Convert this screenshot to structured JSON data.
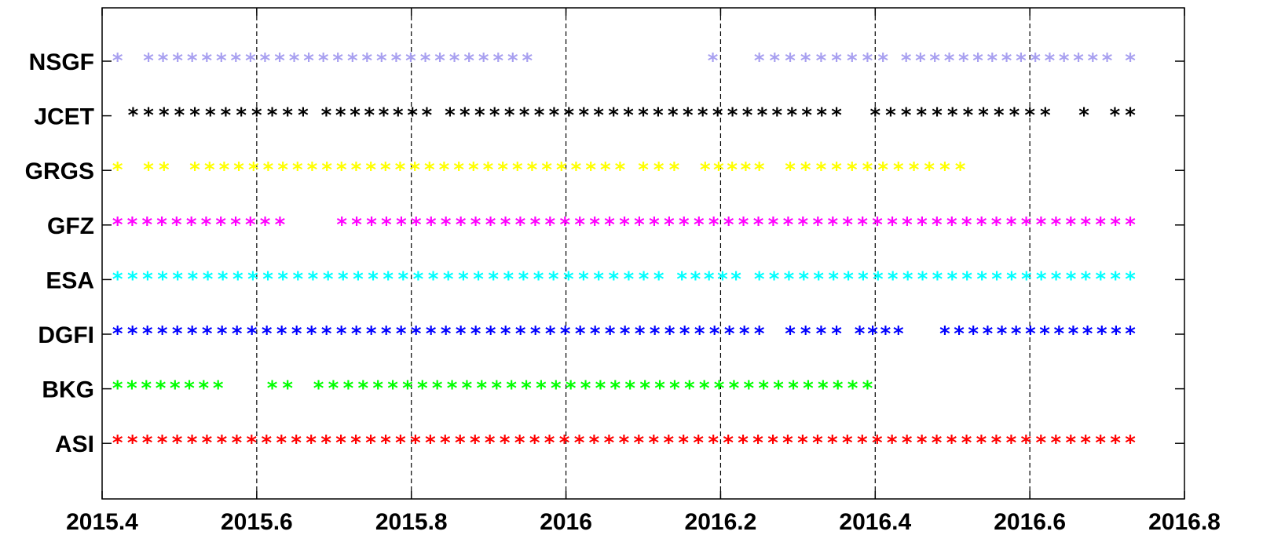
{
  "chart_data": {
    "type": "scatter",
    "title": "",
    "xlabel": "",
    "ylabel": "",
    "xlim": [
      2015.4,
      2016.8
    ],
    "x_ticks": [
      2015.4,
      2015.6,
      2015.8,
      2016,
      2016.2,
      2016.4,
      2016.6,
      2016.8
    ],
    "x_tick_labels": [
      "2015.4",
      "2015.6",
      "2015.8",
      "2016",
      "2016.2",
      "2016.4",
      "2016.6",
      "2016.8"
    ],
    "vertical_gridlines": [
      2015.6,
      2015.8,
      2016,
      2016.2,
      2016.4,
      2016.6
    ],
    "marker": "*",
    "categories": [
      "NSGF",
      "JCET",
      "GRGS",
      "GFZ",
      "ESA",
      "DGFI",
      "BKG",
      "ASI"
    ],
    "series": [
      {
        "name": "NSGF",
        "color": "#a8a0f0",
        "ranges": [
          [
            2015.42,
            2015.42
          ],
          [
            2015.46,
            2015.95
          ],
          [
            2016.19,
            2016.19
          ],
          [
            2016.25,
            2016.41
          ],
          [
            2016.44,
            2016.7
          ],
          [
            2016.73,
            2016.73
          ]
        ]
      },
      {
        "name": "JCET",
        "color": "#000000",
        "ranges": [
          [
            2015.44,
            2015.66
          ],
          [
            2015.69,
            2015.82
          ],
          [
            2015.85,
            2016.35
          ],
          [
            2016.4,
            2016.62
          ],
          [
            2016.67,
            2016.67
          ],
          [
            2016.71,
            2016.73
          ]
        ]
      },
      {
        "name": "GRGS",
        "color": "#ffff00",
        "ranges": [
          [
            2015.42,
            2015.42
          ],
          [
            2015.46,
            2015.48
          ],
          [
            2015.52,
            2016.07
          ],
          [
            2016.1,
            2016.14
          ],
          [
            2016.18,
            2016.25
          ],
          [
            2016.29,
            2016.51
          ]
        ]
      },
      {
        "name": "GFZ",
        "color": "#ff00ff",
        "ranges": [
          [
            2015.42,
            2015.63
          ],
          [
            2015.71,
            2016.73
          ]
        ]
      },
      {
        "name": "ESA",
        "color": "#00ffff",
        "ranges": [
          [
            2015.42,
            2016.12
          ],
          [
            2016.15,
            2016.22
          ],
          [
            2016.25,
            2016.73
          ]
        ]
      },
      {
        "name": "DGFI",
        "color": "#0000ff",
        "ranges": [
          [
            2015.42,
            2016.25
          ],
          [
            2016.29,
            2016.35
          ],
          [
            2016.38,
            2016.43
          ],
          [
            2016.49,
            2016.73
          ]
        ]
      },
      {
        "name": "BKG",
        "color": "#00ff00",
        "ranges": [
          [
            2015.42,
            2015.55
          ],
          [
            2015.62,
            2015.64
          ],
          [
            2015.68,
            2016.39
          ]
        ]
      },
      {
        "name": "ASI",
        "color": "#ff0000",
        "ranges": [
          [
            2015.42,
            2016.73
          ]
        ]
      }
    ],
    "sample_step": 0.0192
  }
}
